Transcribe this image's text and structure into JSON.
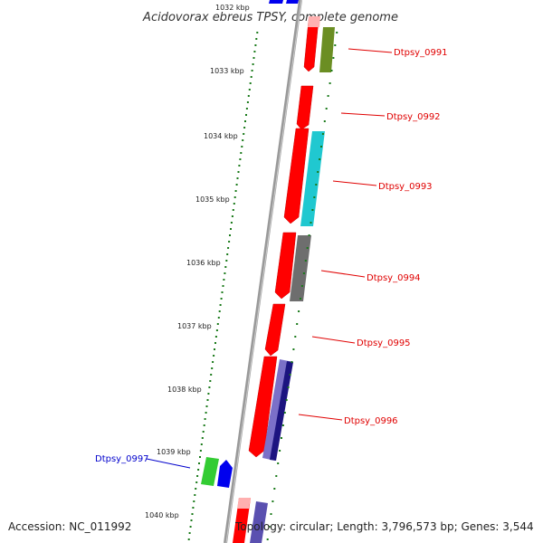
{
  "title": "Acidovorax ebreus TPSY, complete genome",
  "footer": {
    "accession": "Accession: NC_011992",
    "topology": "Topology: circular; Length: 3,796,573 bp; Genes: 3,544"
  },
  "colors": {
    "backbone": "#888888",
    "tick_marks": "#1a7a1a",
    "forward_strand_gene": "#ff0000",
    "label_red": "#e00000",
    "label_blue": "#0000cc"
  },
  "scale_labels": [
    "1032 kbp",
    "1033 kbp",
    "1034 kbp",
    "1035 kbp",
    "1036 kbp",
    "1037 kbp",
    "1038 kbp",
    "1039 kbp",
    "1040 kbp"
  ],
  "gene_labels": [
    {
      "text": "Dtpsy_0991",
      "color": "#e00000"
    },
    {
      "text": "Dtpsy_0992",
      "color": "#e00000"
    },
    {
      "text": "Dtpsy_0993",
      "color": "#e00000"
    },
    {
      "text": "Dtpsy_0994",
      "color": "#e00000"
    },
    {
      "text": "Dtpsy_0995",
      "color": "#e00000"
    },
    {
      "text": "Dtpsy_0996",
      "color": "#e00000"
    },
    {
      "text": "Dtpsy_0997",
      "color": "#0000cc"
    }
  ],
  "function_colors": {
    "Dtpsy_0991": "#6b8e23",
    "Dtpsy_0993": "#20c8d0",
    "Dtpsy_0994": "#6e6e6e",
    "Dtpsy_0996": "#3a2f9a",
    "Dtpsy_0997": "#33cc33",
    "Dtpsy_0997_second": "#0000ee"
  }
}
